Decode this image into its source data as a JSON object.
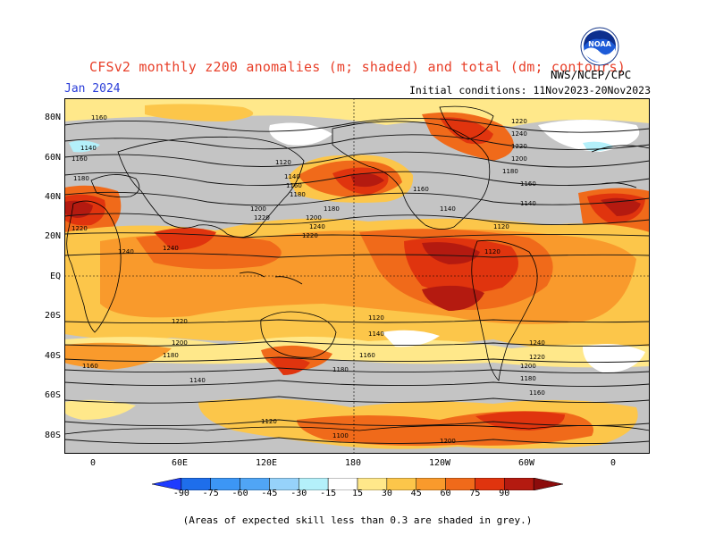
{
  "header": {
    "title": "CFSv2 monthly z200 anomalies (m; shaded) and total (dm; contours)",
    "month": "Jan 2024",
    "initial_conditions": "Initial conditions: 11Nov2023-20Nov2023",
    "agency": "NWS/NCEP/CPC",
    "logo_text": "NOAA"
  },
  "map": {
    "lat_labels": [
      "80N",
      "60N",
      "40N",
      "20N",
      "EQ",
      "20S",
      "40S",
      "60S",
      "80S"
    ],
    "lon_labels": [
      "0",
      "60E",
      "120E",
      "180",
      "120W",
      "60W",
      "0"
    ],
    "contour_labels": [
      "1160",
      "1140",
      "1160",
      "1180",
      "1220",
      "1240",
      "1240",
      "1220",
      "1200",
      "1180",
      "1160",
      "1140",
      "1120",
      "1100",
      "1120",
      "1140",
      "1160",
      "1180",
      "1200",
      "1220",
      "1240",
      "1220",
      "1200",
      "1180",
      "1160",
      "1140",
      "1120",
      "1120",
      "1140",
      "1160",
      "1180",
      "1200",
      "1220",
      "1240",
      "1220",
      "1200",
      "1180",
      "1160",
      "1140",
      "1120",
      "1240",
      "1220",
      "1200",
      "1180",
      "1160"
    ],
    "colors": {
      "grey": "#c4c4c4",
      "pos1": "#ffe88a",
      "pos2": "#fcc64a",
      "pos3": "#f99a2c",
      "pos4": "#f06a1a",
      "pos5": "#e0340e",
      "pos6": "#b41a10",
      "neg1": "#b4f0fa",
      "neg2": "#96d2fa",
      "neg3": "#50a5f5",
      "neg4": "#1e6eeb"
    }
  },
  "colorbar": {
    "labels": [
      "-90",
      "-75",
      "-60",
      "-45",
      "-30",
      "-15",
      "15",
      "30",
      "45",
      "60",
      "75",
      "90"
    ],
    "colors": [
      "#1e3cff",
      "#1e6eeb",
      "#3c96f5",
      "#50a5f5",
      "#96d2fa",
      "#b4f0fa",
      "#ffffff",
      "#ffe88a",
      "#fcc64a",
      "#f99a2c",
      "#f06a1a",
      "#e0340e",
      "#b41a10",
      "#8c0c0c"
    ]
  },
  "footnote": "(Areas of expected skill less than 0.3 are shaded in grey.)"
}
